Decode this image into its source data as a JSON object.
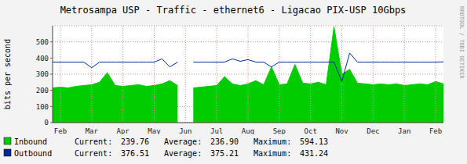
{
  "chart_data": {
    "type": "line",
    "title": "Metrosampa USP - Traffic - ethernet6 - Ligacao PIX-USP 10Gbps",
    "ylabel": "bits per second",
    "side_text": "RRDTOOL / TOBI OETIKER",
    "categories": [
      null,
      "Feb",
      null,
      null,
      null,
      "Mar",
      null,
      null,
      null,
      "Apr",
      null,
      null,
      null,
      "May",
      null,
      null,
      null,
      "Jun",
      null,
      null,
      null,
      "Jul",
      null,
      null,
      null,
      "Aug",
      null,
      null,
      null,
      "Sep",
      null,
      null,
      null,
      "Oct",
      null,
      null,
      null,
      "Nov",
      null,
      null,
      null,
      "Dec",
      null,
      null,
      null,
      "Jan",
      null,
      null,
      null,
      "Feb",
      null
    ],
    "ylim": [
      0,
      600
    ],
    "yticks": [
      0,
      100,
      200,
      300,
      400,
      500
    ],
    "grid": true,
    "stat_labels": [
      "Current:",
      "Average:",
      "Maximum:"
    ],
    "series": [
      {
        "name": "Inbound",
        "type": "area",
        "color": "#00cc00",
        "values": [
          215,
          220,
          215,
          225,
          230,
          235,
          250,
          310,
          230,
          225,
          230,
          235,
          225,
          230,
          240,
          260,
          230,
          null,
          215,
          220,
          225,
          230,
          285,
          240,
          230,
          240,
          260,
          235,
          345,
          235,
          240,
          360,
          245,
          240,
          250,
          235,
          594.13,
          300,
          330,
          245,
          240,
          235,
          240,
          235,
          240,
          230,
          235,
          240,
          235,
          255,
          239.76
        ],
        "stats": [
          239.76,
          {
            "value": 236.9,
            "label": "236.90"
          },
          594.13
        ]
      },
      {
        "name": "Outbound",
        "type": "line",
        "color": "#002a97",
        "values": [
          375,
          375,
          375,
          375,
          375,
          340,
          375,
          375,
          375,
          375,
          375,
          375,
          375,
          375,
          395,
          345,
          375,
          null,
          375,
          375,
          375,
          375,
          375,
          395,
          380,
          390,
          375,
          375,
          345,
          375,
          375,
          375,
          375,
          375,
          375,
          375,
          375,
          255,
          431.24,
          375,
          375,
          375,
          375,
          375,
          375,
          375,
          375,
          375,
          375,
          375,
          376.51
        ],
        "stats": [
          376.51,
          375.21,
          431.24
        ]
      }
    ]
  }
}
